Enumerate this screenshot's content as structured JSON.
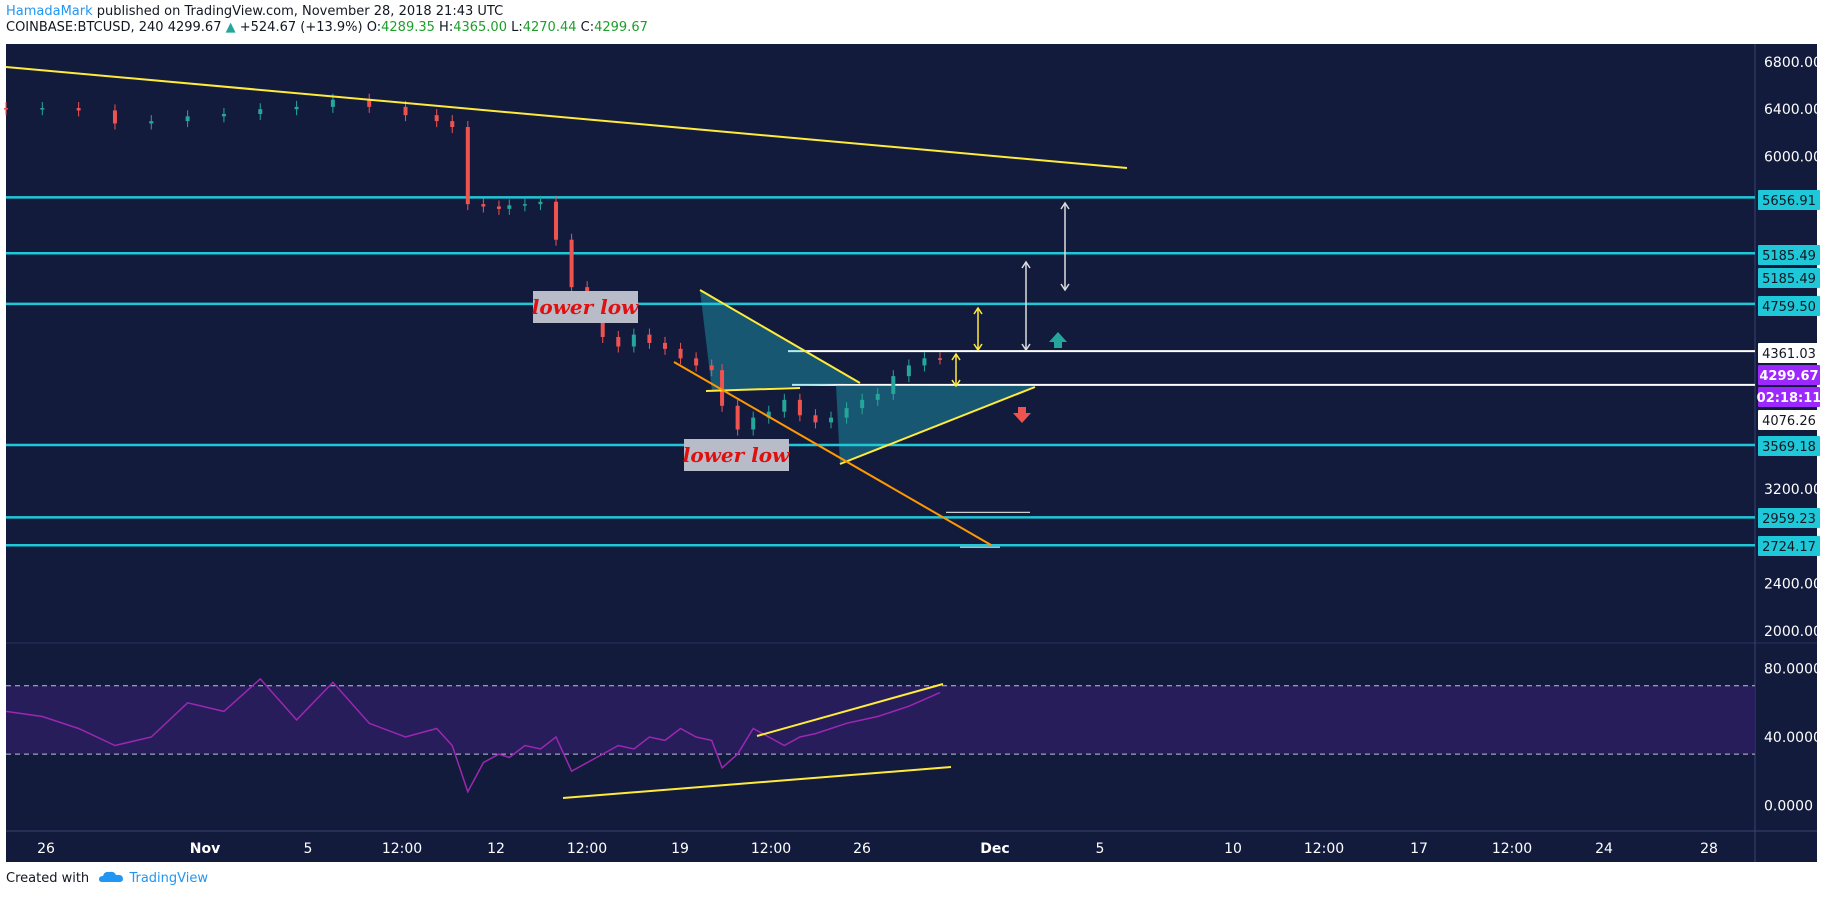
{
  "header": {
    "author": "HamadaMark",
    "published": "published on TradingView.com, November 28, 2018 21:43 UTC",
    "symbol": "COINBASE:BTCUSD, 240",
    "last": "4299.67",
    "change_arrow": "▲",
    "change": "+524.67 (+13.9%)",
    "o_label": "O:",
    "o_value": "4289.35",
    "h_label": "H:",
    "h_value": "4365.00",
    "l_label": "L:",
    "l_value": "4270.44",
    "c_label": "C:",
    "c_value": "4299.67"
  },
  "footer": {
    "created_with": "Created with",
    "brand": "TradingView",
    "logo_icon": "cloud-logo-icon"
  },
  "colors": {
    "background": "#131b3d",
    "cyan_level": "#1fc8d8",
    "trendline": "#ffeb3b",
    "channel": "#ff9800",
    "up_candle": "#26a69a",
    "down_candle": "#ef5350",
    "rsi_line": "#9c27b0",
    "current_price": "#9c27ff"
  },
  "chart_data": [
    {
      "type": "line",
      "subtype": "candlestick",
      "symbol": "COINBASE:BTCUSD",
      "interval": "240",
      "ylim": [
        1900,
        6950
      ],
      "y_ticks": [
        "6800.00",
        "6400.00",
        "6000.00",
        "3200.00",
        "2400.00",
        "2000.00"
      ],
      "x_ticks": [
        "26",
        "Nov",
        "5",
        "12:00",
        "12",
        "12:00",
        "19",
        "12:00",
        "26",
        "Dec",
        "5",
        "10",
        "12:00",
        "17",
        "12:00",
        "24",
        "28"
      ],
      "x": [
        0,
        7,
        14,
        21,
        28,
        35,
        42,
        49,
        56,
        63,
        70,
        77,
        83,
        86,
        89,
        92,
        95,
        97,
        100,
        103,
        106,
        109,
        112,
        115,
        118,
        121,
        124,
        127,
        130,
        133,
        136,
        138,
        141,
        144,
        147,
        150,
        153,
        156,
        159,
        162,
        165,
        168,
        171,
        174,
        177,
        180
      ],
      "close": [
        6400,
        6410,
        6390,
        6280,
        6300,
        6340,
        6360,
        6400,
        6420,
        6480,
        6420,
        6350,
        6300,
        6250,
        5600,
        5580,
        5560,
        5590,
        5600,
        5620,
        5300,
        4900,
        4700,
        4480,
        4400,
        4500,
        4430,
        4380,
        4300,
        4240,
        4200,
        3900,
        3700,
        3800,
        3850,
        3950,
        3820,
        3760,
        3800,
        3880,
        3950,
        4000,
        4150,
        4240,
        4300,
        4299.67
      ],
      "levels": [
        {
          "value": "5656.91",
          "color": "#1fc8d8"
        },
        {
          "value": "5185.49",
          "color": "#1fc8d8"
        },
        {
          "value": "5185.49",
          "color": "#1fc8d8"
        },
        {
          "value": "4759.50",
          "color": "#1fc8d8"
        },
        {
          "value": "4361.03",
          "color": "#ffffff"
        },
        {
          "value": "4299.67",
          "color": "#9c27ff"
        },
        {
          "value": "02:18:11",
          "color": "#9c27ff"
        },
        {
          "value": "4076.26",
          "color": "#ffffff"
        },
        {
          "value": "3569.18",
          "color": "#1fc8d8"
        },
        {
          "value": "2959.23",
          "color": "#1fc8d8"
        },
        {
          "value": "2724.17",
          "color": "#1fc8d8"
        }
      ],
      "annotations": [
        {
          "text": "lower low",
          "near_value": 4759.5
        },
        {
          "text": "lower low",
          "near_value": 3569.18
        }
      ]
    },
    {
      "type": "line",
      "name": "RSI",
      "ylim": [
        -15,
        95
      ],
      "y_ticks": [
        "80.0000",
        "40.0000",
        "0.0000"
      ],
      "bands": [
        30,
        70
      ],
      "x": [
        0,
        7,
        14,
        21,
        28,
        35,
        42,
        49,
        56,
        63,
        70,
        77,
        83,
        86,
        89,
        92,
        95,
        97,
        100,
        103,
        106,
        109,
        112,
        115,
        118,
        121,
        124,
        127,
        130,
        133,
        136,
        138,
        141,
        144,
        147,
        150,
        153,
        156,
        159,
        162,
        165,
        168,
        171,
        174,
        177,
        180
      ],
      "values": [
        55,
        52,
        45,
        35,
        40,
        60,
        55,
        74,
        50,
        72,
        48,
        40,
        45,
        35,
        8,
        25,
        30,
        28,
        35,
        33,
        40,
        20,
        25,
        30,
        35,
        33,
        40,
        38,
        45,
        40,
        38,
        22,
        30,
        45,
        40,
        35,
        40,
        42,
        45,
        48,
        50,
        52,
        55,
        58,
        62,
        66
      ]
    }
  ]
}
